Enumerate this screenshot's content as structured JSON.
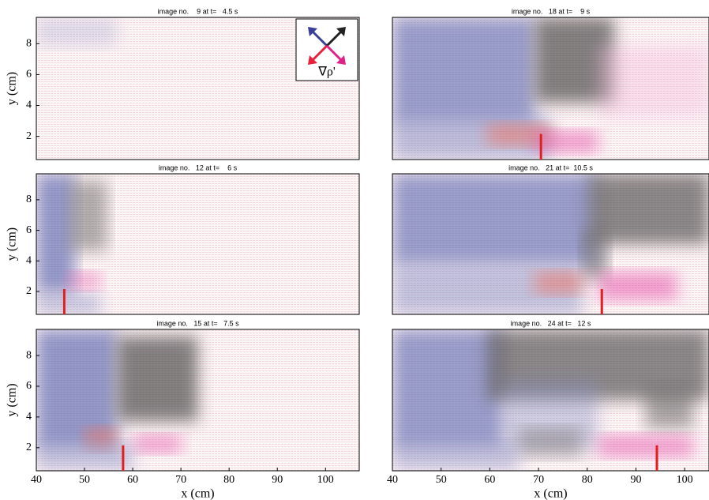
{
  "chart_data": [
    {
      "type": "field",
      "title": "image no.    9 at t=   4.5 s",
      "ylabel": "y (cm)",
      "xlim": [
        40,
        107
      ],
      "ylim": [
        0.5,
        9.7
      ],
      "yticks": [
        2,
        4,
        6,
        8
      ],
      "legend_label": "∇ρ'"
    },
    {
      "type": "field",
      "title": "image no.   18 at t=    9 s",
      "xlim": [
        40,
        105
      ],
      "ylim": [
        0.5,
        9.7
      ],
      "x": [
        70.5
      ]
    },
    {
      "type": "field",
      "title": "image no.   12 at t=    6 s",
      "ylabel": "y (cm)",
      "xlim": [
        40,
        107
      ],
      "ylim": [
        0.5,
        9.7
      ],
      "yticks": [
        2,
        4,
        6,
        8
      ],
      "x": [
        45.8
      ]
    },
    {
      "type": "field",
      "title": "image no.   21 at t=  10.5 s",
      "xlim": [
        40,
        105
      ],
      "ylim": [
        0.5,
        9.7
      ],
      "x": [
        83
      ]
    },
    {
      "type": "field",
      "title": "image no.   15 at t=   7.5 s",
      "ylabel": "y (cm)",
      "xlabel": "x (cm)",
      "xlim": [
        40,
        107
      ],
      "ylim": [
        0.5,
        9.7
      ],
      "yticks": [
        2,
        4,
        6,
        8
      ],
      "xticks": [
        40,
        50,
        60,
        70,
        80,
        90,
        100
      ],
      "x": [
        58
      ]
    },
    {
      "type": "field",
      "title": "image no.   24 at t=   12 s",
      "xlabel": "x (cm)",
      "xlim": [
        40,
        105
      ],
      "ylim": [
        0.5,
        9.7
      ],
      "xticks": [
        40,
        50,
        60,
        70,
        80,
        90,
        100
      ],
      "x": [
        94.3
      ]
    }
  ]
}
